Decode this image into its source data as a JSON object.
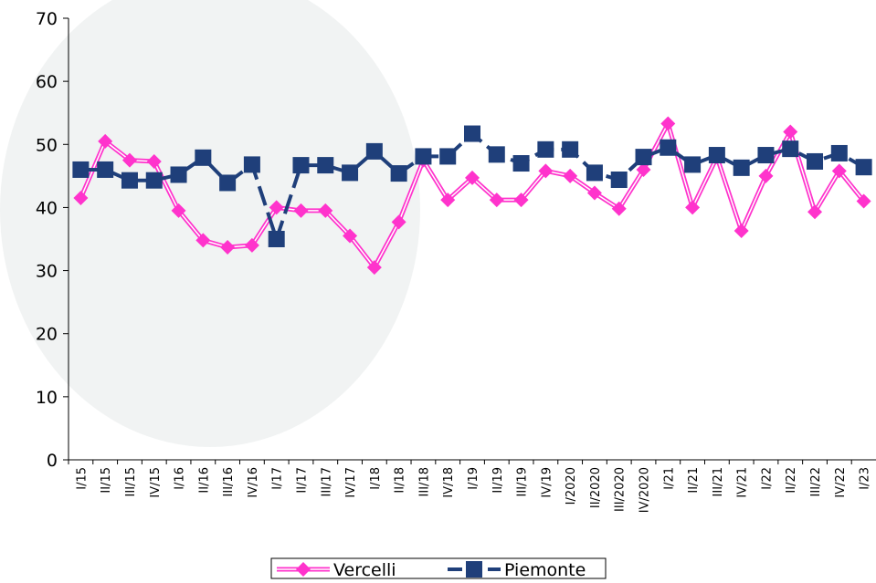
{
  "chart_data": {
    "type": "line",
    "categories": [
      "I/15",
      "II/15",
      "III/15",
      "IV/15",
      "I/16",
      "II/16",
      "III/16",
      "IV/16",
      "I/17",
      "II/17",
      "III/17",
      "IV/17",
      "I/18",
      "II/18",
      "III/18",
      "IV/18",
      "I/19",
      "II/19",
      "III/19",
      "IV/19",
      "I/2020",
      "II/2020",
      "III/2020",
      "IV/2020",
      "I/21",
      "II/21",
      "III/21",
      "IV/21",
      "I/22",
      "II/22",
      "III/22",
      "IV/22",
      "I/23"
    ],
    "series": [
      {
        "name": "Vercelli",
        "color": "#ff33cc",
        "values": [
          41.5,
          50.5,
          47.5,
          47.3,
          39.5,
          34.8,
          33.7,
          34,
          40,
          39.5,
          39.5,
          35.5,
          30.5,
          37.7,
          47.5,
          41.2,
          44.7,
          41.2,
          41.2,
          45.8,
          45,
          42.3,
          39.8,
          46,
          53.3,
          40,
          48,
          36.3,
          45,
          52,
          39.3,
          45.8,
          41
        ]
      },
      {
        "name": "Piemonte",
        "color": "#1f3f7a",
        "values": [
          46,
          46,
          44.3,
          44.3,
          45.2,
          47.9,
          43.9,
          46.8,
          35,
          46.7,
          46.7,
          45.5,
          48.9,
          45.4,
          48.1,
          48.1,
          51.7,
          48.4,
          47,
          49.2,
          49.2,
          45.5,
          44.4,
          48,
          49.5,
          46.8,
          48.3,
          46.3,
          48.3,
          49.3,
          47.3,
          48.6,
          46.4
        ]
      }
    ],
    "ylim": [
      0,
      70
    ],
    "yticks": [
      0,
      10,
      20,
      30,
      40,
      50,
      60,
      70
    ],
    "legend": "bottom"
  }
}
